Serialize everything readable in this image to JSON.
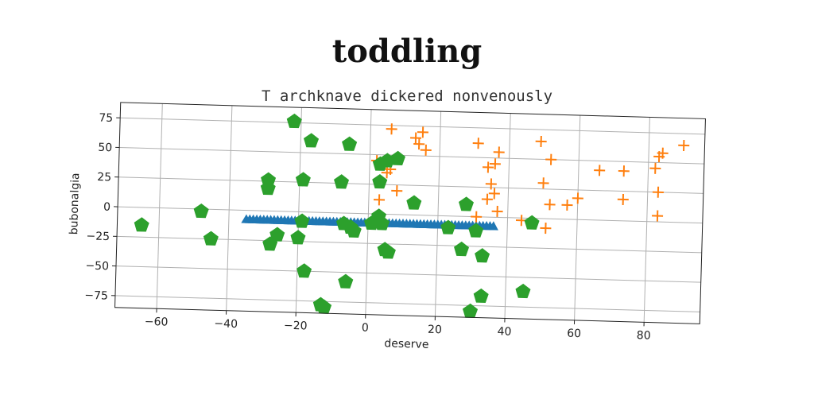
{
  "chart_data": {
    "type": "scatter",
    "title": "toddling",
    "subtitle": "T archknave dickered nonvenously",
    "xlabel": "deserve",
    "ylabel": "bubonalgia",
    "xlim": [
      -72,
      96
    ],
    "ylim": [
      -85,
      88
    ],
    "xticks": [
      -60,
      -40,
      -20,
      0,
      20,
      40,
      60,
      80
    ],
    "yticks": [
      75,
      50,
      25,
      0,
      -25,
      -50,
      -75
    ],
    "grid": true,
    "legend": "none",
    "series": [
      {
        "marker": "triangle",
        "color": "#1f77b4",
        "x": [
          -35,
          -34,
          -33,
          -32,
          -31,
          -30,
          -29,
          -28,
          -27,
          -26,
          -25,
          -24,
          -23,
          -22,
          -21,
          -20,
          -19,
          -18,
          -17,
          -16,
          -15,
          -14,
          -13,
          -12,
          -11,
          -10,
          -9,
          -8,
          -7,
          -6,
          -5,
          -4,
          -3,
          -2,
          -1,
          0,
          1,
          2,
          3,
          4,
          5,
          6,
          7,
          8,
          9,
          10,
          11,
          12,
          13,
          14,
          15,
          16,
          17,
          18,
          19,
          20,
          21,
          22,
          23,
          24,
          25,
          26,
          27,
          28,
          29,
          30,
          31,
          32,
          33,
          34,
          35,
          36
        ],
        "y": [
          -8,
          -8,
          -8,
          -8,
          -8,
          -8,
          -8,
          -8,
          -8,
          -8,
          -8,
          -8,
          -8,
          -8,
          -8,
          -8,
          -8,
          -8,
          -8,
          -8,
          -8,
          -8,
          -8,
          -8,
          -8,
          -8,
          -8,
          -8,
          -8,
          -8,
          -8,
          -8,
          -8,
          -8,
          -8,
          -8,
          -8,
          -8,
          -8,
          -8,
          -8,
          -8,
          -8,
          -8,
          -8,
          -8,
          -8,
          -8,
          -8,
          -8,
          -8,
          -8,
          -8,
          -8,
          -8,
          -8,
          -8,
          -8,
          -8,
          -8,
          -8,
          -8,
          -8,
          -8,
          -8,
          -8,
          -8,
          -8,
          -8,
          -8,
          -8,
          -8
        ]
      },
      {
        "marker": "plus",
        "color": "#ff7f0e",
        "x": [
          6,
          13,
          15,
          14,
          16,
          31,
          34,
          37,
          36,
          35,
          34,
          37,
          36,
          31,
          2,
          5,
          8,
          3,
          6,
          49,
          52,
          50,
          52,
          57,
          60,
          44,
          51,
          66,
          73,
          73,
          82,
          83,
          84,
          83,
          83,
          90
        ],
        "y": [
          72,
          65,
          70,
          60,
          55,
          62,
          42,
          55,
          45,
          28,
          15,
          5,
          20,
          0,
          45,
          35,
          20,
          12,
          38,
          65,
          50,
          30,
          12,
          12,
          18,
          -2,
          -8,
          42,
          42,
          18,
          45,
          25,
          58,
          55,
          5,
          65
        ]
      },
      {
        "marker": "pentagon",
        "color": "#2ca02c",
        "x": [
          -22,
          -17,
          -6,
          -65,
          -48,
          -45,
          -29,
          -29,
          -26,
          -28,
          -19,
          -19,
          -20,
          -18,
          -8,
          -5,
          -4,
          -6,
          -12,
          -13,
          1,
          3,
          5,
          6,
          3,
          3,
          8,
          13,
          4,
          5,
          23,
          27,
          30,
          33,
          33,
          28,
          31,
          45,
          47,
          -7
        ],
        "y": [
          76,
          60,
          58,
          -15,
          -2,
          -25,
          26,
          19,
          -20,
          -28,
          27,
          -8,
          -22,
          -50,
          26,
          -12,
          -15,
          -58,
          -80,
          -78,
          -8,
          27,
          -30,
          -32,
          42,
          -2,
          47,
          10,
          -8,
          45,
          -10,
          -28,
          -80,
          -67,
          -33,
          10,
          -12,
          -62,
          -4,
          -9
        ]
      }
    ]
  }
}
